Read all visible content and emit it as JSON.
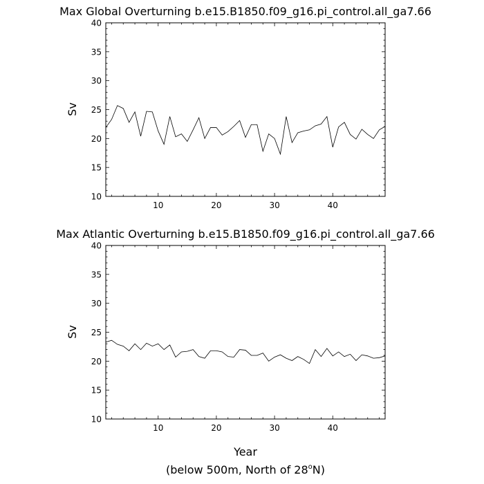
{
  "chart_data": [
    {
      "type": "line",
      "title": "Max Global Overturning b.e15.B1850.f09_g16.pi_control.all_ga7.66",
      "xlabel": "",
      "ylabel": "Sv",
      "xlim": [
        1,
        49
      ],
      "ylim": [
        10,
        40
      ],
      "xticks": [
        10,
        20,
        30,
        40
      ],
      "yticks": [
        10,
        15,
        20,
        25,
        30,
        35,
        40
      ],
      "grid": false,
      "series": [
        {
          "x": [
            1,
            2,
            3,
            4,
            5,
            6,
            7,
            8,
            9,
            10,
            11,
            12,
            13,
            14,
            15,
            16,
            17,
            18,
            19,
            20,
            21,
            22,
            23,
            24,
            25,
            26,
            27,
            28,
            29,
            30,
            31,
            32,
            33,
            34,
            35,
            36,
            37,
            38,
            39,
            40,
            41,
            42,
            43,
            44,
            45,
            46,
            47,
            48,
            49
          ],
          "values": [
            21.9,
            23.3,
            25.7,
            25.2,
            22.8,
            24.6,
            20.4,
            24.7,
            24.6,
            21.3,
            19.0,
            23.8,
            20.3,
            20.8,
            19.5,
            21.5,
            23.6,
            20.0,
            21.9,
            21.9,
            20.6,
            21.2,
            22.1,
            23.1,
            20.2,
            22.4,
            22.4,
            17.8,
            20.8,
            20.0,
            17.3,
            23.8,
            19.3,
            21.0,
            21.3,
            21.5,
            22.2,
            22.5,
            23.8,
            18.5,
            22.0,
            22.8,
            20.7,
            19.9,
            21.6,
            20.7,
            20.0,
            21.5,
            22.1
          ]
        }
      ]
    },
    {
      "type": "line",
      "title": "Max Atlantic Overturning b.e15.B1850.f09_g16.pi_control.all_ga7.66",
      "xlabel": "Year",
      "ylabel": "Sv",
      "xlim": [
        1,
        49
      ],
      "ylim": [
        10,
        40
      ],
      "xticks": [
        10,
        20,
        30,
        40
      ],
      "yticks": [
        10,
        15,
        20,
        25,
        30,
        35,
        40
      ],
      "grid": false,
      "series": [
        {
          "x": [
            1,
            2,
            3,
            4,
            5,
            6,
            7,
            8,
            9,
            10,
            11,
            12,
            13,
            14,
            15,
            16,
            17,
            18,
            19,
            20,
            21,
            22,
            23,
            24,
            25,
            26,
            27,
            28,
            29,
            30,
            31,
            32,
            33,
            34,
            35,
            36,
            37,
            38,
            39,
            40,
            41,
            42,
            43,
            44,
            45,
            46,
            47,
            48,
            49
          ],
          "values": [
            23.3,
            23.6,
            22.9,
            22.6,
            21.8,
            23.0,
            22.0,
            23.1,
            22.6,
            23.0,
            22.0,
            22.8,
            20.7,
            21.6,
            21.7,
            22.0,
            20.8,
            20.5,
            21.8,
            21.8,
            21.6,
            20.8,
            20.7,
            22.0,
            21.9,
            21.0,
            21.0,
            21.4,
            20.0,
            20.7,
            21.1,
            20.5,
            20.1,
            20.8,
            20.3,
            19.6,
            22.0,
            20.8,
            22.2,
            20.9,
            21.6,
            20.8,
            21.2,
            20.1,
            21.1,
            20.9,
            20.5,
            20.6,
            20.9
          ]
        }
      ]
    }
  ],
  "footnote_prefix": "(below 500m, North of 28",
  "footnote_degree": "o",
  "footnote_suffix": "N)"
}
